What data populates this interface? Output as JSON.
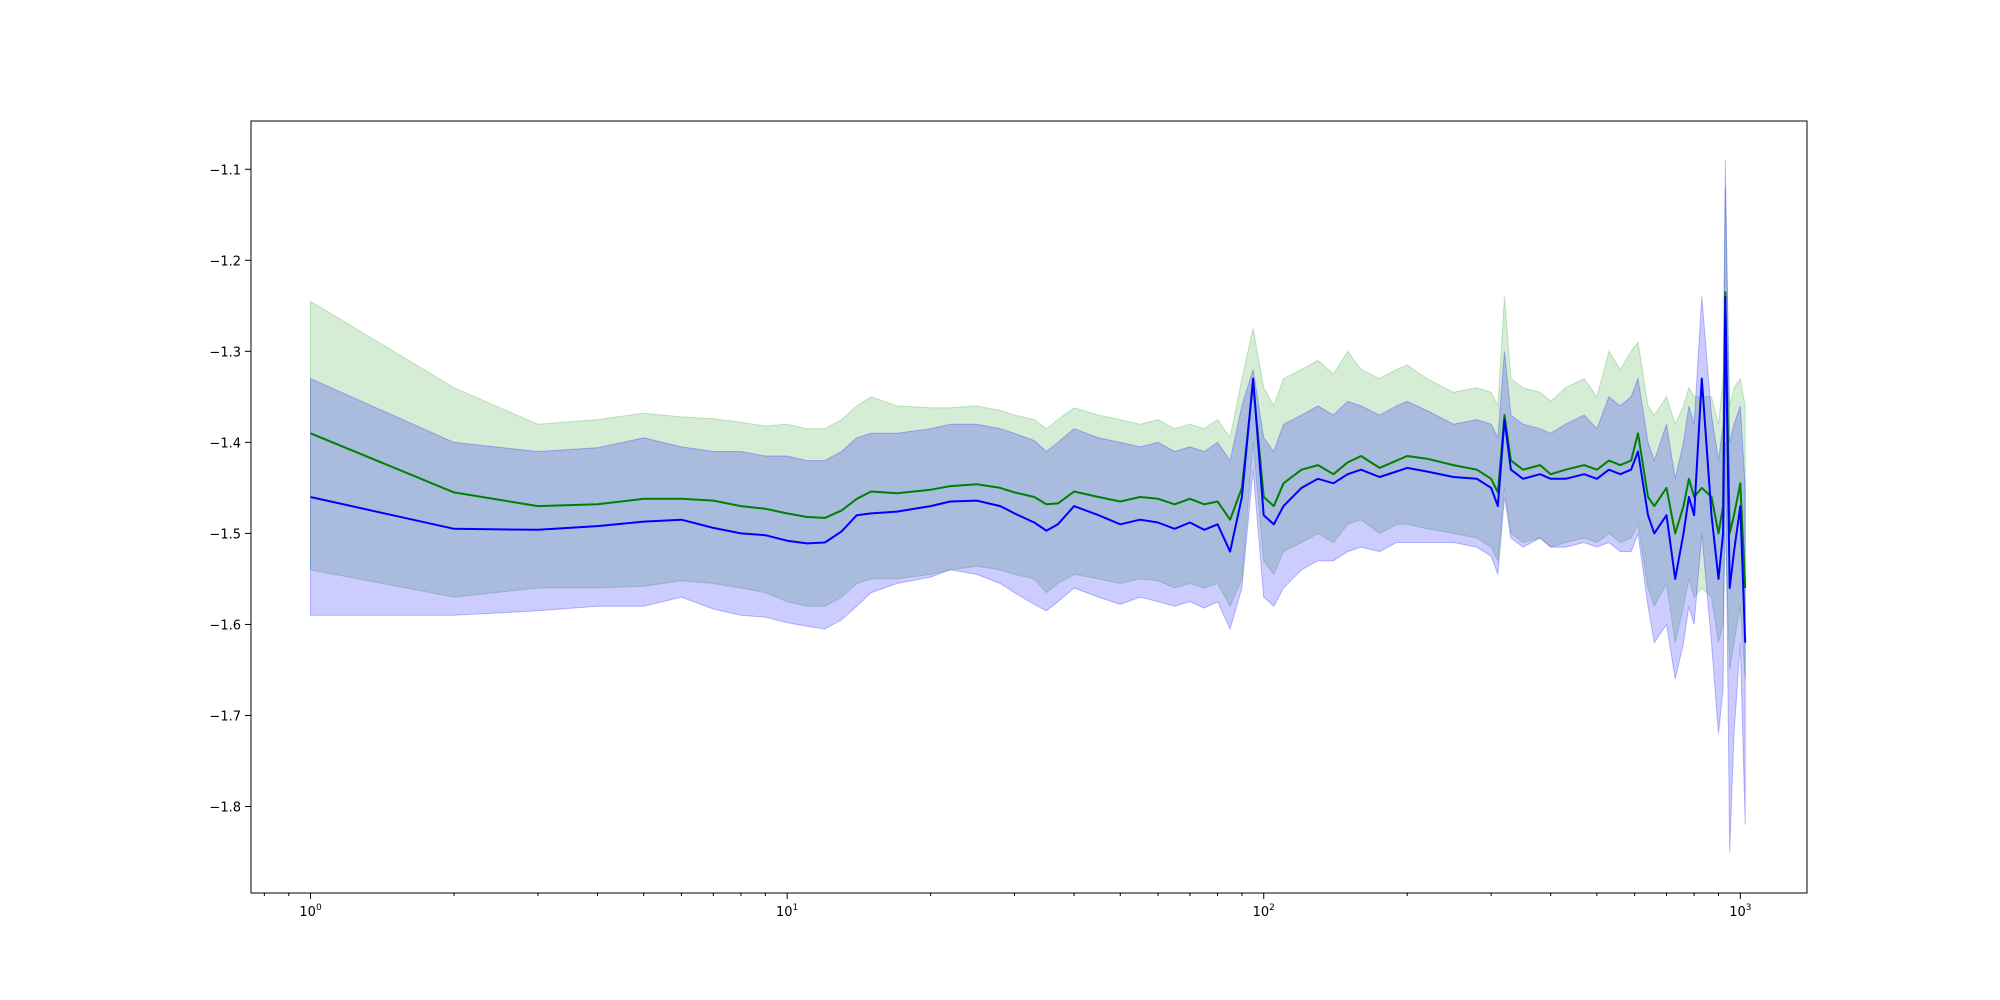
{
  "chart_data": {
    "type": "line",
    "title": "",
    "xlabel": "",
    "ylabel": "",
    "xscale": "log",
    "xlim": [
      0.75,
      1380
    ],
    "ylim": [
      -1.895,
      -1.047
    ],
    "grid": false,
    "legend": "none",
    "x_ticks": [
      {
        "base": "10",
        "exp": "0",
        "value": 1
      },
      {
        "base": "10",
        "exp": "1",
        "value": 10
      },
      {
        "base": "10",
        "exp": "2",
        "value": 100
      },
      {
        "base": "10",
        "exp": "3",
        "value": 1000
      }
    ],
    "y_ticks": [
      {
        "label": "−1.1",
        "value": -1.1
      },
      {
        "label": "−1.2",
        "value": -1.2
      },
      {
        "label": "−1.3",
        "value": -1.3
      },
      {
        "label": "−1.4",
        "value": -1.4
      },
      {
        "label": "−1.5",
        "value": -1.5
      },
      {
        "label": "−1.6",
        "value": -1.6
      },
      {
        "label": "−1.7",
        "value": -1.7
      },
      {
        "label": "−1.8",
        "value": -1.8
      }
    ],
    "series": [
      {
        "color": "#008000",
        "band_color": "#2ca02c",
        "x": [
          1,
          2,
          3,
          4,
          5,
          6,
          7,
          8,
          9,
          10,
          11,
          12,
          13,
          14,
          15,
          17,
          20,
          22,
          25,
          28,
          30,
          33,
          35,
          37,
          40,
          45,
          50,
          55,
          60,
          65,
          70,
          75,
          80,
          85,
          90,
          95,
          100,
          105,
          110,
          120,
          130,
          140,
          150,
          160,
          175,
          190,
          200,
          220,
          250,
          280,
          300,
          310,
          320,
          330,
          350,
          380,
          400,
          430,
          470,
          500,
          530,
          560,
          590,
          610,
          640,
          660,
          700,
          730,
          760,
          780,
          800,
          830,
          870,
          900,
          920,
          930,
          950,
          970,
          1000,
          1024
        ],
        "y": [
          -1.39,
          -1.455,
          -1.47,
          -1.468,
          -1.462,
          -1.462,
          -1.464,
          -1.47,
          -1.473,
          -1.478,
          -1.482,
          -1.483,
          -1.475,
          -1.462,
          -1.454,
          -1.456,
          -1.452,
          -1.448,
          -1.446,
          -1.45,
          -1.455,
          -1.46,
          -1.468,
          -1.467,
          -1.454,
          -1.46,
          -1.465,
          -1.46,
          -1.462,
          -1.468,
          -1.462,
          -1.468,
          -1.465,
          -1.485,
          -1.45,
          -1.335,
          -1.46,
          -1.47,
          -1.445,
          -1.43,
          -1.425,
          -1.435,
          -1.422,
          -1.415,
          -1.428,
          -1.42,
          -1.415,
          -1.418,
          -1.425,
          -1.43,
          -1.44,
          -1.455,
          -1.37,
          -1.42,
          -1.43,
          -1.425,
          -1.435,
          -1.43,
          -1.425,
          -1.43,
          -1.42,
          -1.425,
          -1.42,
          -1.39,
          -1.46,
          -1.47,
          -1.45,
          -1.5,
          -1.47,
          -1.44,
          -1.46,
          -1.45,
          -1.46,
          -1.5,
          -1.47,
          -1.235,
          -1.5,
          -1.48,
          -1.445,
          -1.56
        ],
        "upper": [
          -1.245,
          -1.34,
          -1.38,
          -1.375,
          -1.368,
          -1.372,
          -1.374,
          -1.378,
          -1.382,
          -1.38,
          -1.385,
          -1.385,
          -1.375,
          -1.36,
          -1.35,
          -1.36,
          -1.362,
          -1.362,
          -1.36,
          -1.365,
          -1.37,
          -1.375,
          -1.385,
          -1.375,
          -1.362,
          -1.37,
          -1.375,
          -1.38,
          -1.375,
          -1.385,
          -1.38,
          -1.385,
          -1.375,
          -1.395,
          -1.33,
          -1.275,
          -1.34,
          -1.36,
          -1.33,
          -1.32,
          -1.31,
          -1.325,
          -1.3,
          -1.32,
          -1.33,
          -1.32,
          -1.315,
          -1.33,
          -1.345,
          -1.34,
          -1.345,
          -1.36,
          -1.24,
          -1.33,
          -1.34,
          -1.345,
          -1.355,
          -1.34,
          -1.33,
          -1.35,
          -1.3,
          -1.32,
          -1.3,
          -1.29,
          -1.36,
          -1.37,
          -1.35,
          -1.38,
          -1.36,
          -1.34,
          -1.35,
          -1.35,
          -1.35,
          -1.38,
          -1.33,
          -1.12,
          -1.36,
          -1.34,
          -1.33,
          -1.36
        ],
        "lower": [
          -1.54,
          -1.57,
          -1.56,
          -1.56,
          -1.558,
          -1.552,
          -1.555,
          -1.56,
          -1.565,
          -1.575,
          -1.58,
          -1.58,
          -1.57,
          -1.555,
          -1.55,
          -1.55,
          -1.545,
          -1.54,
          -1.536,
          -1.54,
          -1.545,
          -1.55,
          -1.565,
          -1.555,
          -1.545,
          -1.55,
          -1.555,
          -1.55,
          -1.552,
          -1.56,
          -1.555,
          -1.56,
          -1.555,
          -1.58,
          -1.55,
          -1.4,
          -1.53,
          -1.545,
          -1.52,
          -1.51,
          -1.5,
          -1.51,
          -1.49,
          -1.485,
          -1.5,
          -1.49,
          -1.49,
          -1.495,
          -1.5,
          -1.505,
          -1.515,
          -1.53,
          -1.45,
          -1.5,
          -1.51,
          -1.505,
          -1.515,
          -1.51,
          -1.505,
          -1.51,
          -1.5,
          -1.51,
          -1.505,
          -1.49,
          -1.56,
          -1.58,
          -1.555,
          -1.62,
          -1.58,
          -1.55,
          -1.57,
          -1.56,
          -1.57,
          -1.62,
          -1.6,
          -1.5,
          -1.65,
          -1.62,
          -1.58,
          -1.66
        ]
      },
      {
        "color": "#0000ff",
        "band_color": "#0000ff",
        "x": [
          1,
          2,
          3,
          4,
          5,
          6,
          7,
          8,
          9,
          10,
          11,
          12,
          13,
          14,
          15,
          17,
          20,
          22,
          25,
          28,
          30,
          33,
          35,
          37,
          40,
          45,
          50,
          55,
          60,
          65,
          70,
          75,
          80,
          85,
          90,
          95,
          100,
          105,
          110,
          120,
          130,
          140,
          150,
          160,
          175,
          190,
          200,
          220,
          250,
          280,
          300,
          310,
          320,
          330,
          350,
          380,
          400,
          430,
          470,
          500,
          530,
          560,
          590,
          610,
          640,
          660,
          700,
          730,
          760,
          780,
          800,
          830,
          870,
          900,
          920,
          930,
          950,
          970,
          1000,
          1024
        ],
        "y": [
          -1.46,
          -1.495,
          -1.496,
          -1.492,
          -1.487,
          -1.485,
          -1.494,
          -1.5,
          -1.502,
          -1.508,
          -1.511,
          -1.51,
          -1.498,
          -1.48,
          -1.478,
          -1.476,
          -1.47,
          -1.465,
          -1.464,
          -1.47,
          -1.478,
          -1.488,
          -1.497,
          -1.49,
          -1.47,
          -1.48,
          -1.49,
          -1.485,
          -1.488,
          -1.495,
          -1.488,
          -1.496,
          -1.49,
          -1.52,
          -1.46,
          -1.33,
          -1.48,
          -1.49,
          -1.47,
          -1.45,
          -1.44,
          -1.445,
          -1.435,
          -1.43,
          -1.438,
          -1.432,
          -1.428,
          -1.432,
          -1.438,
          -1.44,
          -1.45,
          -1.47,
          -1.375,
          -1.43,
          -1.44,
          -1.435,
          -1.44,
          -1.44,
          -1.435,
          -1.44,
          -1.43,
          -1.435,
          -1.43,
          -1.41,
          -1.48,
          -1.5,
          -1.48,
          -1.55,
          -1.5,
          -1.46,
          -1.48,
          -1.33,
          -1.48,
          -1.55,
          -1.5,
          -1.24,
          -1.56,
          -1.52,
          -1.47,
          -1.62
        ],
        "upper": [
          -1.33,
          -1.4,
          -1.41,
          -1.406,
          -1.395,
          -1.405,
          -1.41,
          -1.41,
          -1.415,
          -1.415,
          -1.42,
          -1.42,
          -1.41,
          -1.395,
          -1.39,
          -1.39,
          -1.385,
          -1.38,
          -1.38,
          -1.385,
          -1.39,
          -1.398,
          -1.41,
          -1.4,
          -1.385,
          -1.395,
          -1.4,
          -1.405,
          -1.4,
          -1.41,
          -1.405,
          -1.41,
          -1.4,
          -1.42,
          -1.36,
          -1.32,
          -1.395,
          -1.41,
          -1.38,
          -1.37,
          -1.36,
          -1.37,
          -1.355,
          -1.36,
          -1.37,
          -1.36,
          -1.355,
          -1.365,
          -1.38,
          -1.375,
          -1.38,
          -1.395,
          -1.3,
          -1.37,
          -1.38,
          -1.385,
          -1.39,
          -1.38,
          -1.37,
          -1.385,
          -1.35,
          -1.36,
          -1.35,
          -1.33,
          -1.4,
          -1.42,
          -1.38,
          -1.44,
          -1.4,
          -1.36,
          -1.38,
          -1.24,
          -1.37,
          -1.42,
          -1.38,
          -1.09,
          -1.4,
          -1.38,
          -1.36,
          -1.45
        ],
        "lower": [
          -1.59,
          -1.59,
          -1.585,
          -1.58,
          -1.58,
          -1.57,
          -1.583,
          -1.59,
          -1.592,
          -1.598,
          -1.602,
          -1.605,
          -1.595,
          -1.58,
          -1.565,
          -1.555,
          -1.548,
          -1.54,
          -1.545,
          -1.555,
          -1.565,
          -1.578,
          -1.585,
          -1.575,
          -1.56,
          -1.57,
          -1.578,
          -1.57,
          -1.575,
          -1.58,
          -1.575,
          -1.582,
          -1.575,
          -1.605,
          -1.56,
          -1.43,
          -1.57,
          -1.58,
          -1.56,
          -1.54,
          -1.53,
          -1.53,
          -1.52,
          -1.515,
          -1.52,
          -1.51,
          -1.51,
          -1.51,
          -1.51,
          -1.515,
          -1.525,
          -1.545,
          -1.46,
          -1.505,
          -1.515,
          -1.505,
          -1.515,
          -1.515,
          -1.51,
          -1.515,
          -1.51,
          -1.52,
          -1.52,
          -1.5,
          -1.58,
          -1.62,
          -1.6,
          -1.66,
          -1.62,
          -1.58,
          -1.6,
          -1.5,
          -1.62,
          -1.72,
          -1.67,
          -1.4,
          -1.85,
          -1.72,
          -1.62,
          -1.82
        ]
      }
    ]
  }
}
